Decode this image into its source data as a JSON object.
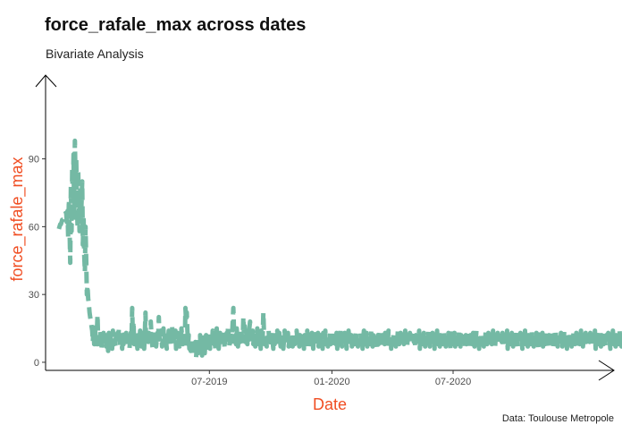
{
  "chart_data": {
    "type": "line",
    "title": "force_rafale_max across dates",
    "subtitle": "Bivariate Analysis",
    "caption": "Data: Toulouse Metropole",
    "xlabel": "Date",
    "ylabel": "force_rafale_max",
    "ylim": [
      -2,
      112
    ],
    "xlim": [
      "2018-10-28",
      "2021-01-25"
    ],
    "y_ticks": [
      0,
      30,
      60,
      90
    ],
    "x_ticks": [
      {
        "date": "2019-07-01",
        "label": "07-2019"
      },
      {
        "date": "2020-01-01",
        "label": "01-2020"
      },
      {
        "date": "2020-07-01",
        "label": "07-2020"
      }
    ],
    "grid": false,
    "line_style": "dashed",
    "colors": {
      "line": "#74b9a4",
      "axis_title": "#f04e23",
      "axis": "#000000"
    },
    "start_date": "2018-11-17",
    "series": [
      {
        "name": "force_rafale_max",
        "values": [
          59,
          60,
          61,
          61,
          62,
          63,
          63,
          64,
          64,
          65,
          66,
          66,
          62,
          67,
          55,
          72,
          60,
          44,
          78,
          58,
          86,
          70,
          92,
          64,
          98,
          80,
          90,
          72,
          60,
          85,
          68,
          58,
          76,
          62,
          70,
          80,
          52,
          65,
          48,
          40,
          60,
          45,
          30,
          34,
          28,
          26,
          22,
          20,
          18,
          16,
          14,
          9,
          15,
          8,
          17,
          11,
          7,
          13,
          21,
          9,
          12,
          8,
          14,
          10,
          6,
          11,
          9,
          13,
          8,
          10,
          12,
          7,
          11,
          9,
          5,
          13,
          10,
          8,
          12,
          9,
          6,
          14,
          11,
          8,
          10,
          7,
          12,
          9,
          13,
          8,
          15,
          10,
          7,
          12,
          9,
          6,
          11,
          8,
          14,
          10,
          7,
          13,
          9,
          12,
          8,
          11,
          6,
          10,
          14,
          9,
          24,
          12,
          18,
          8,
          11,
          7,
          13,
          9,
          6,
          12,
          10,
          8,
          14,
          11,
          7,
          9,
          13,
          10,
          6,
          12,
          22,
          8,
          11,
          15,
          9,
          13,
          7,
          10,
          18,
          12,
          8,
          6,
          11,
          14,
          9,
          12,
          7,
          10,
          13,
          8,
          20,
          11,
          9,
          14,
          12,
          7,
          10,
          15,
          8,
          13,
          11,
          9,
          6,
          12,
          10,
          14,
          8,
          11,
          7,
          13,
          16,
          10,
          8,
          12,
          9,
          14,
          6,
          11,
          13,
          8,
          10,
          7,
          12,
          9,
          15,
          11,
          8,
          13,
          10,
          6,
          24,
          18,
          22,
          14,
          8,
          12,
          6,
          9,
          5,
          10,
          4,
          8,
          3,
          7,
          5,
          9,
          2,
          6,
          8,
          4,
          10,
          7,
          12,
          5,
          9,
          3,
          8,
          11,
          6,
          4,
          9,
          12,
          7,
          10,
          5,
          8,
          13,
          6,
          9,
          11,
          7,
          14,
          10,
          8,
          12,
          5,
          9,
          15,
          7,
          11,
          6,
          10,
          13,
          8,
          12,
          9,
          7,
          14,
          10,
          6,
          11,
          8,
          13,
          9,
          16,
          12,
          7,
          10,
          14,
          9,
          11,
          18,
          24,
          13,
          9,
          12,
          8,
          15,
          10,
          7,
          13,
          11,
          9,
          14,
          8,
          12,
          10,
          20,
          12,
          16,
          9,
          11,
          14,
          8,
          13,
          10,
          15,
          18,
          12,
          9,
          11,
          14,
          8,
          12,
          10,
          7,
          13,
          9,
          15,
          11,
          8,
          12,
          10,
          6,
          14,
          9,
          11,
          22,
          13,
          8,
          10,
          12,
          7,
          11,
          9,
          14,
          8,
          12,
          10,
          7,
          13,
          9,
          6,
          11,
          8,
          12,
          10,
          9,
          14,
          11,
          8,
          13,
          10,
          7,
          12,
          9,
          11,
          6,
          10,
          14,
          8,
          12,
          9,
          11,
          13,
          7,
          10,
          12,
          8,
          9,
          11,
          7,
          13,
          10,
          8,
          12,
          9,
          14,
          11,
          8,
          10,
          7,
          12,
          9,
          13,
          8,
          11,
          10,
          6,
          12,
          9,
          11,
          8,
          14,
          10,
          7,
          12,
          9,
          11,
          8,
          13,
          10,
          6,
          12,
          9,
          11,
          14,
          8,
          10,
          13,
          7,
          11,
          9,
          12,
          8,
          10,
          6,
          13,
          11,
          9,
          14,
          8,
          12,
          10,
          7,
          11,
          9,
          13,
          8,
          10,
          12,
          9,
          14,
          7,
          11,
          10,
          8,
          13,
          6,
          12,
          9,
          11,
          8,
          14,
          10,
          7,
          12,
          9,
          11,
          13,
          8,
          10,
          6,
          12,
          9,
          14,
          11,
          8,
          10,
          12,
          7,
          13,
          9,
          11,
          8,
          10,
          14,
          9,
          12,
          7,
          11,
          10,
          8,
          13,
          9,
          12,
          6,
          10,
          14,
          8,
          11,
          9,
          13,
          7,
          12,
          10,
          8,
          11,
          9,
          14,
          10,
          7,
          12,
          8,
          11,
          9,
          13,
          10,
          6,
          12,
          8,
          11,
          14,
          9,
          10,
          7,
          12,
          9,
          11,
          8,
          13,
          10,
          7,
          12,
          9,
          14,
          11,
          8,
          10,
          6,
          12,
          9,
          11,
          13,
          8,
          10,
          7,
          12,
          9,
          14,
          11,
          8,
          10,
          13,
          7,
          12,
          9,
          11,
          8,
          10,
          14,
          9,
          12,
          7,
          11,
          10,
          8,
          13,
          9,
          12,
          10,
          8,
          11,
          9,
          13,
          7,
          12,
          10,
          8,
          11,
          9,
          14,
          6,
          12,
          10,
          8,
          11,
          9,
          13,
          10,
          7,
          12,
          9,
          11,
          8,
          14,
          10,
          7,
          12,
          9,
          11,
          13,
          8,
          10,
          6,
          12,
          9,
          11,
          14,
          8,
          10,
          13,
          7,
          12,
          9,
          11,
          8,
          10,
          14,
          9,
          12,
          7,
          11,
          10,
          8,
          13,
          9,
          12,
          6,
          10,
          14,
          8,
          11,
          9,
          13,
          7,
          12,
          10,
          8,
          11,
          9,
          14,
          10,
          7,
          12,
          8,
          11,
          9,
          13,
          10,
          6,
          12,
          8,
          11,
          14,
          9,
          10,
          7,
          12,
          9,
          11,
          8,
          13,
          10,
          7,
          12,
          9,
          14,
          11,
          8,
          10,
          6,
          12,
          9,
          11,
          13,
          8,
          10,
          7,
          12,
          9,
          14,
          11,
          8,
          10,
          13,
          7,
          12,
          9,
          11,
          8,
          10,
          14,
          9,
          12,
          7,
          11,
          10,
          8,
          13,
          9,
          12,
          10,
          8,
          11,
          9,
          13,
          7,
          12,
          10,
          8,
          11,
          9,
          14,
          6,
          12,
          10,
          8,
          11,
          9,
          13,
          10,
          7,
          12,
          9,
          11,
          8,
          14,
          10,
          7,
          12,
          9,
          11,
          13,
          8,
          10,
          6,
          12,
          9,
          11,
          14,
          8,
          10,
          13,
          7,
          12,
          9,
          11,
          8,
          10,
          14,
          9,
          12,
          7,
          11,
          10,
          8,
          13,
          9,
          12,
          6,
          10,
          14,
          8,
          11,
          9,
          13,
          7,
          12,
          10,
          8,
          11,
          9,
          14,
          10,
          7,
          12,
          8,
          11,
          9,
          13,
          10,
          6,
          12,
          8,
          11,
          14,
          9,
          10,
          7,
          12,
          9,
          11,
          8,
          13,
          10,
          7,
          12,
          9,
          14,
          11,
          8,
          10,
          6,
          12,
          9,
          11,
          13,
          8,
          10,
          7,
          12,
          9,
          14,
          11,
          8,
          10,
          13,
          7,
          12,
          9,
          11,
          8,
          10,
          14,
          9,
          12,
          7,
          11,
          10,
          8,
          13,
          9,
          12,
          10,
          8,
          11,
          9,
          13,
          7,
          12,
          10,
          8,
          11,
          9,
          14,
          6,
          12,
          10,
          8,
          11,
          9,
          13,
          10,
          7,
          12,
          9,
          11,
          8,
          14,
          10,
          7,
          12,
          9,
          11,
          13,
          8,
          10,
          6,
          12,
          9,
          11,
          14,
          8,
          10,
          13,
          7,
          12,
          9,
          11,
          8,
          10,
          14,
          9,
          12,
          7,
          11,
          10,
          8,
          13,
          9,
          12,
          6,
          10,
          14,
          8,
          11,
          9,
          13,
          7,
          12,
          10,
          8,
          11,
          9,
          14,
          10,
          7,
          12,
          8,
          11,
          9,
          13,
          10,
          6,
          12,
          8,
          11,
          14,
          9,
          10,
          7,
          12,
          9,
          11,
          8,
          13,
          10,
          7,
          12
        ]
      }
    ]
  }
}
